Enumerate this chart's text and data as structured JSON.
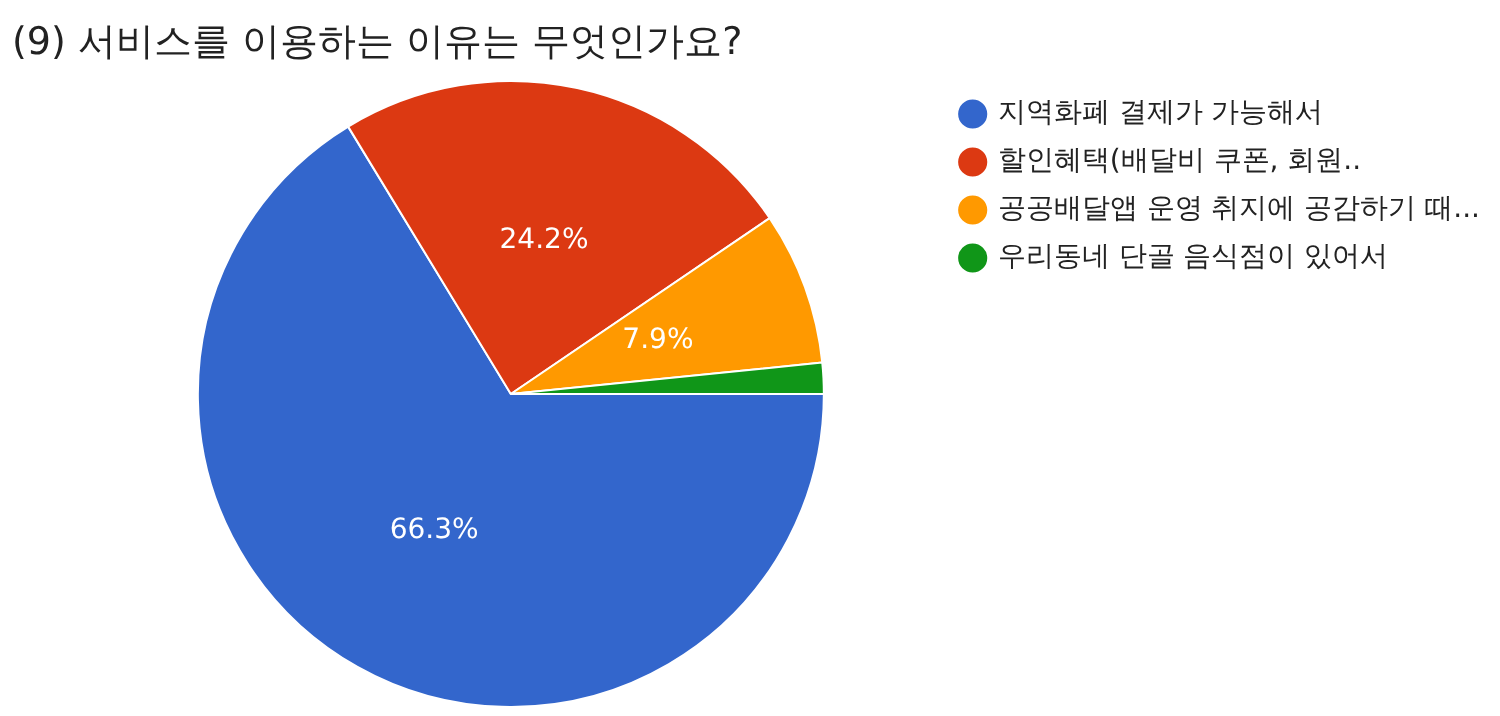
{
  "chart_data": {
    "type": "pie",
    "title": "(9) 서비스를 이용하는 이유는 무엇인가요?",
    "categories": [
      "지역화폐 결제가 가능해서",
      "할인혜택(배달비 쿠폰, 회원..",
      "공공배달앱 운영 취지에 공감하기 때...",
      "우리동네 단골 음식점이 있어서"
    ],
    "values": [
      66.3,
      24.2,
      7.9,
      1.6
    ],
    "colors": [
      "#3366cc",
      "#dc3912",
      "#ff9900",
      "#109618"
    ],
    "value_labels": [
      "66.3%",
      "24.2%",
      "7.9%",
      null
    ],
    "legend": "top right"
  }
}
